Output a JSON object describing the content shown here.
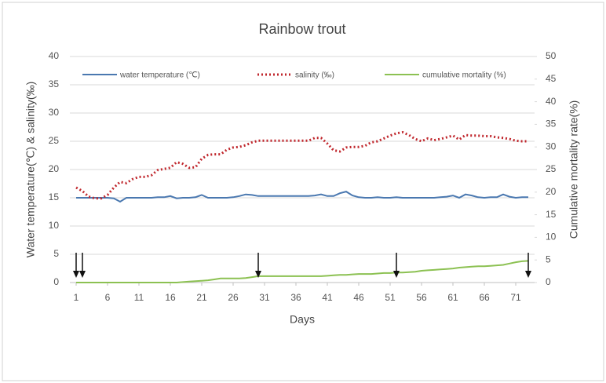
{
  "chart_data": {
    "type": "line",
    "title": "Rainbow trout",
    "x_label": "Days",
    "y_label": "Water temperature(℃)  & salinity(‰)",
    "y2_label": "Cumulative mortality rate(%)",
    "x": [
      1,
      2,
      3,
      4,
      5,
      6,
      7,
      8,
      9,
      10,
      11,
      12,
      13,
      14,
      15,
      16,
      17,
      18,
      19,
      20,
      21,
      22,
      23,
      24,
      25,
      26,
      27,
      28,
      29,
      30,
      31,
      32,
      33,
      34,
      35,
      36,
      37,
      38,
      39,
      40,
      41,
      42,
      43,
      44,
      45,
      46,
      47,
      48,
      49,
      50,
      51,
      52,
      53,
      54,
      55,
      56,
      57,
      58,
      59,
      60,
      61,
      62,
      63,
      64,
      65,
      66,
      67,
      68,
      69,
      70,
      71,
      72,
      73
    ],
    "xlim": [
      0,
      74
    ],
    "xticks": [
      1,
      6,
      11,
      16,
      21,
      26,
      31,
      36,
      41,
      46,
      51,
      56,
      61,
      66,
      71
    ],
    "ylim": [
      0,
      40
    ],
    "yticks": [
      0,
      5,
      10,
      15,
      20,
      25,
      30,
      35,
      40
    ],
    "y2lim": [
      0,
      50
    ],
    "y2ticks": [
      0,
      5,
      10,
      15,
      20,
      25,
      30,
      35,
      40,
      45,
      50
    ],
    "grid": true,
    "legend": "top",
    "arrows": [
      1,
      2,
      30,
      52,
      73
    ],
    "series": [
      {
        "name": "water temperature (℃)",
        "color": "#4a78b0",
        "style": "solid",
        "values": [
          15.0,
          15.0,
          15.0,
          15.0,
          15.0,
          15.0,
          14.9,
          14.3,
          15.0,
          15.0,
          15.0,
          15.0,
          15.0,
          15.1,
          15.1,
          15.3,
          14.9,
          15.0,
          15.0,
          15.1,
          15.5,
          15.0,
          15.0,
          15.0,
          15.0,
          15.1,
          15.3,
          15.6,
          15.5,
          15.3,
          15.3,
          15.3,
          15.3,
          15.3,
          15.3,
          15.3,
          15.3,
          15.3,
          15.4,
          15.6,
          15.3,
          15.3,
          15.8,
          16.1,
          15.4,
          15.1,
          15.0,
          15.0,
          15.1,
          15.0,
          15.0,
          15.1,
          15.0,
          15.0,
          15.0,
          15.0,
          15.0,
          15.0,
          15.1,
          15.2,
          15.4,
          15.0,
          15.6,
          15.4,
          15.1,
          15.0,
          15.1,
          15.1,
          15.6,
          15.2,
          15.0,
          15.1,
          15.1
        ]
      },
      {
        "name": "salinity (‰)",
        "color": "#c0272d",
        "style": "dotted",
        "values": [
          16.8,
          16.2,
          15.2,
          14.9,
          14.9,
          15.5,
          16.8,
          17.8,
          17.6,
          18.3,
          18.7,
          18.7,
          19.0,
          19.9,
          20.1,
          20.3,
          21.3,
          21.0,
          20.3,
          20.4,
          21.9,
          22.6,
          22.7,
          22.7,
          23.5,
          23.9,
          24.0,
          24.3,
          24.8,
          25.1,
          25.1,
          25.1,
          25.1,
          25.1,
          25.1,
          25.1,
          25.1,
          25.1,
          25.6,
          25.6,
          24.6,
          23.4,
          23.2,
          23.9,
          24.0,
          24.0,
          24.2,
          24.8,
          25.0,
          25.5,
          26.0,
          26.4,
          26.6,
          26.1,
          25.4,
          25.0,
          25.5,
          25.2,
          25.4,
          25.7,
          26.0,
          25.3,
          26.1,
          26.0,
          26.0,
          25.9,
          25.9,
          25.7,
          25.6,
          25.4,
          25.1,
          25.0,
          25.0
        ]
      },
      {
        "name": "cumulative mortality (%)",
        "color": "#8cc152",
        "style": "solid",
        "axis": "y2",
        "values": [
          0,
          0,
          0,
          0,
          0,
          0,
          0,
          0,
          0,
          0,
          0,
          0,
          0,
          0,
          0,
          0,
          0,
          0.1,
          0.2,
          0.3,
          0.4,
          0.5,
          0.7,
          0.9,
          0.9,
          0.9,
          0.9,
          1.0,
          1.2,
          1.4,
          1.4,
          1.4,
          1.4,
          1.4,
          1.4,
          1.4,
          1.4,
          1.4,
          1.4,
          1.4,
          1.5,
          1.6,
          1.7,
          1.7,
          1.8,
          1.9,
          1.9,
          1.9,
          2.0,
          2.1,
          2.1,
          2.2,
          2.2,
          2.3,
          2.4,
          2.6,
          2.7,
          2.8,
          2.9,
          3.0,
          3.1,
          3.3,
          3.4,
          3.5,
          3.6,
          3.6,
          3.7,
          3.8,
          3.9,
          4.2,
          4.5,
          4.7,
          4.8
        ]
      }
    ]
  }
}
